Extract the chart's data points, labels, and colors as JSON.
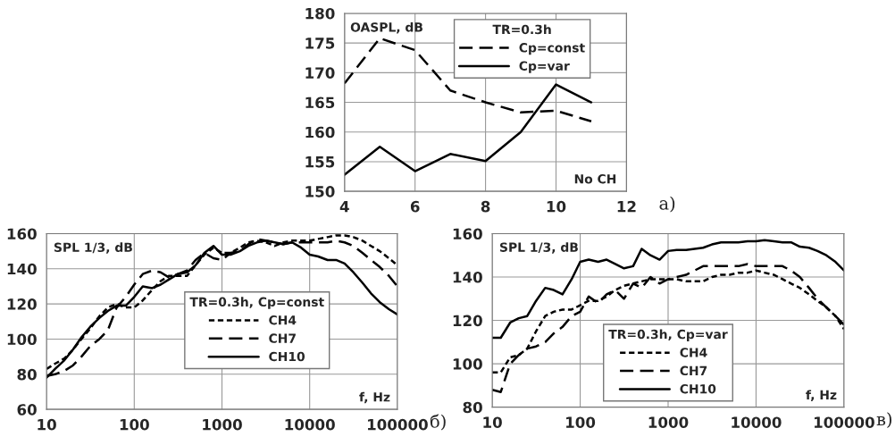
{
  "chart_data": [
    {
      "type": "line",
      "xlabel": "No CH",
      "ylabel": "OASPL, dB",
      "legend_title": "TR=0.3h",
      "x": [
        4,
        5,
        6,
        7,
        8,
        9,
        10,
        11
      ],
      "series": [
        {
          "name": "Cp=const",
          "color": "#000000",
          "line_style": "dashed",
          "values": [
            168.2,
            175.8,
            173.8,
            167,
            165,
            163.3,
            163.6,
            161.8
          ]
        },
        {
          "name": "Cp=var",
          "color": "#000000",
          "line_style": "solid",
          "values": [
            152.8,
            157.5,
            153.4,
            156.3,
            155.1,
            160,
            168,
            165
          ]
        }
      ],
      "xlim": [
        4,
        12
      ],
      "xticks": [
        4,
        6,
        8,
        10,
        12
      ],
      "ylim": [
        150,
        180
      ],
      "yticks": [
        150,
        155,
        160,
        165,
        170,
        175,
        180
      ],
      "grid": true,
      "legend": "top center",
      "annotations": [
        "a)"
      ]
    },
    {
      "type": "line",
      "xlabel": "f, Hz",
      "ylabel": "SPL 1/3, dB",
      "legend_title": "TR=0.3h, Cp=const",
      "log": "x",
      "x": [
        10,
        12.5,
        16,
        20,
        25,
        31.5,
        40,
        50,
        63,
        80,
        100,
        125,
        160,
        200,
        250,
        315,
        400,
        500,
        630,
        800,
        1000,
        1250,
        1600,
        2000,
        2500,
        3150,
        4000,
        5000,
        6300,
        8000,
        10000,
        12500,
        16000,
        20000,
        25000,
        31500,
        40000,
        50000,
        63000,
        80000,
        100000
      ],
      "series": [
        {
          "name": "CH4",
          "color": "#000000",
          "line_style": "dotted",
          "values": [
            83,
            86,
            89,
            94,
            100,
            106,
            113,
            118,
            120,
            118,
            118,
            122,
            128,
            133,
            136,
            136,
            136,
            142,
            148,
            152,
            149,
            149,
            152,
            155,
            156,
            155,
            153,
            155,
            156,
            156,
            156,
            157,
            158,
            159,
            159,
            158,
            156,
            153,
            150,
            146,
            142
          ]
        },
        {
          "name": "CH7",
          "color": "#000000",
          "line_style": "dashed",
          "values": [
            79,
            80,
            82,
            85,
            90,
            96,
            100,
            105,
            118,
            124,
            131,
            137,
            139,
            138,
            135,
            137,
            139,
            145,
            149,
            146,
            145,
            149,
            150,
            154,
            157,
            156,
            155,
            154,
            155,
            155,
            155,
            155,
            155,
            156,
            155,
            153,
            149,
            145,
            141,
            136,
            130
          ]
        },
        {
          "name": "CH10",
          "color": "#000000",
          "line_style": "solid",
          "values": [
            78,
            83,
            88,
            94,
            101,
            107,
            112,
            116,
            119,
            119,
            124,
            130,
            129,
            131,
            134,
            137,
            138,
            142,
            149,
            153,
            148,
            148,
            150,
            153,
            155,
            156,
            155,
            154,
            155,
            152,
            148,
            147,
            145,
            145,
            143,
            138,
            132,
            126,
            121,
            117,
            114
          ]
        }
      ],
      "xlim": [
        10,
        100000
      ],
      "xticks": [
        10,
        100,
        1000,
        10000,
        100000
      ],
      "ylim": [
        60,
        160
      ],
      "yticks": [
        60,
        80,
        100,
        120,
        140,
        160
      ],
      "grid": true,
      "legend": "center",
      "annotations": [
        "б)"
      ]
    },
    {
      "type": "line",
      "xlabel": "f, Hz",
      "ylabel": "SPL 1/3, dB",
      "legend_title": "TR=0.3h, Cp=var",
      "log": "x",
      "x": [
        10,
        12.5,
        16,
        20,
        25,
        31.5,
        40,
        50,
        63,
        80,
        100,
        125,
        160,
        200,
        250,
        315,
        400,
        500,
        630,
        800,
        1000,
        1250,
        1600,
        2000,
        2500,
        3150,
        4000,
        5000,
        6300,
        8000,
        10000,
        12500,
        16000,
        20000,
        25000,
        31500,
        40000,
        50000,
        63000,
        80000,
        100000
      ],
      "series": [
        {
          "name": "CH4",
          "color": "#000000",
          "line_style": "dotted",
          "values": [
            96,
            96,
            103,
            104,
            107,
            115,
            122,
            124,
            125,
            125,
            127,
            129,
            129,
            131,
            134,
            136,
            137,
            138,
            139,
            139,
            139,
            139,
            138,
            138,
            138,
            140,
            141,
            141,
            142,
            142,
            143,
            142,
            141,
            139,
            137,
            135,
            132,
            129,
            126,
            122,
            116
          ]
        },
        {
          "name": "CH7",
          "color": "#000000",
          "line_style": "dashed",
          "values": [
            88,
            87,
            100,
            104,
            107,
            108,
            110,
            114,
            117,
            122,
            124,
            131,
            128,
            132,
            134,
            130,
            137,
            135,
            140,
            137,
            139,
            140,
            141,
            143,
            145,
            145,
            145,
            145,
            145,
            146,
            145,
            145,
            145,
            145,
            143,
            140,
            135,
            130,
            126,
            122,
            118
          ]
        },
        {
          "name": "CH10",
          "color": "#000000",
          "line_style": "solid",
          "values": [
            112,
            112,
            119,
            121,
            122,
            129,
            135,
            134,
            132,
            139,
            147,
            148,
            147,
            148,
            146,
            144,
            145,
            153,
            150,
            148,
            152,
            152.5,
            152.5,
            153,
            153.5,
            155,
            156,
            156,
            156,
            156.5,
            156.5,
            157,
            156.5,
            156,
            156,
            154,
            153.5,
            152,
            150,
            147,
            143
          ]
        }
      ],
      "xlim": [
        10,
        100000
      ],
      "xticks": [
        10,
        100,
        1000,
        10000,
        100000
      ],
      "ylim": [
        80,
        160
      ],
      "yticks": [
        80,
        100,
        120,
        140,
        160
      ],
      "grid": true,
      "legend": "bottom center",
      "annotations": [
        "в)"
      ]
    }
  ]
}
